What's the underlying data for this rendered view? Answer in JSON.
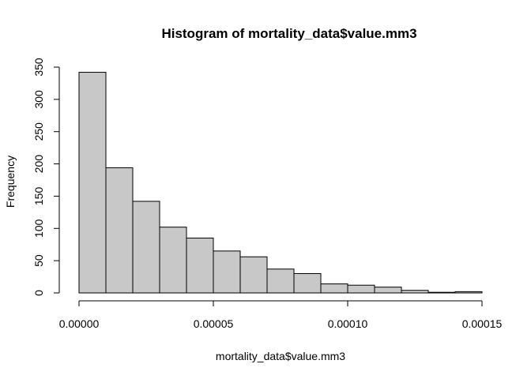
{
  "chart_data": {
    "type": "bar",
    "title": "Histogram of mortality_data$value.mm3",
    "xlabel": "mortality_data$value.mm3",
    "ylabel": "Frequency",
    "bins": [
      {
        "from": 0.0,
        "to": 1e-05,
        "count": 342
      },
      {
        "from": 1e-05,
        "to": 2e-05,
        "count": 194
      },
      {
        "from": 2e-05,
        "to": 3e-05,
        "count": 142
      },
      {
        "from": 3e-05,
        "to": 4e-05,
        "count": 102
      },
      {
        "from": 4e-05,
        "to": 5e-05,
        "count": 85
      },
      {
        "from": 5e-05,
        "to": 6e-05,
        "count": 65
      },
      {
        "from": 6e-05,
        "to": 7e-05,
        "count": 56
      },
      {
        "from": 7e-05,
        "to": 8e-05,
        "count": 37
      },
      {
        "from": 8e-05,
        "to": 9e-05,
        "count": 30
      },
      {
        "from": 9e-05,
        "to": 0.0001,
        "count": 14
      },
      {
        "from": 0.0001,
        "to": 0.00011,
        "count": 12
      },
      {
        "from": 0.00011,
        "to": 0.00012,
        "count": 9
      },
      {
        "from": 0.00012,
        "to": 0.00013,
        "count": 4
      },
      {
        "from": 0.00013,
        "to": 0.00014,
        "count": 1
      },
      {
        "from": 0.00014,
        "to": 0.00015,
        "count": 2
      }
    ],
    "xlim": [
      0,
      0.00015
    ],
    "ylim": [
      0,
      350
    ],
    "x_ticks": [
      {
        "value": 0,
        "label": "0.00000"
      },
      {
        "value": 5e-05,
        "label": "0.00005"
      },
      {
        "value": 0.0001,
        "label": "0.00010"
      },
      {
        "value": 0.00015,
        "label": "0.00015"
      }
    ],
    "y_ticks": [
      {
        "value": 0,
        "label": "0"
      },
      {
        "value": 50,
        "label": "50"
      },
      {
        "value": 100,
        "label": "100"
      },
      {
        "value": 150,
        "label": "150"
      },
      {
        "value": 200,
        "label": "200"
      },
      {
        "value": 250,
        "label": "250"
      },
      {
        "value": 300,
        "label": "300"
      },
      {
        "value": 350,
        "label": "350"
      }
    ],
    "bar_color": "#c8c8c8",
    "grid": false
  }
}
